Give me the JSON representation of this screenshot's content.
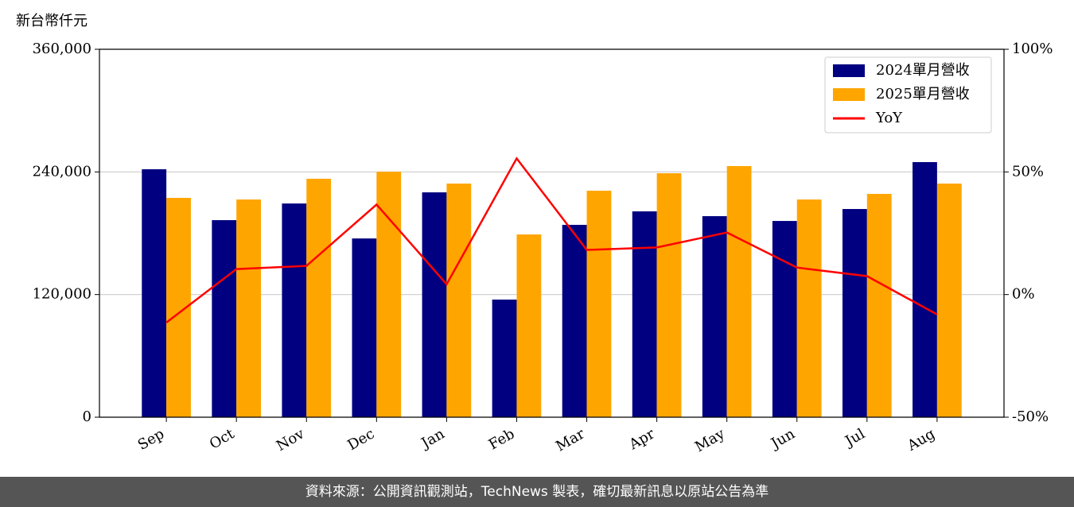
{
  "chart_data": {
    "type": "bar",
    "y_axis_label": "新台幣仟元",
    "categories": [
      "Sep",
      "Oct",
      "Nov",
      "Dec",
      "Jan",
      "Feb",
      "Mar",
      "Apr",
      "May",
      "Jun",
      "Jul",
      "Aug"
    ],
    "series": [
      {
        "name": "2024單月營收",
        "color": "#000080",
        "values": [
          242600,
          192800,
          209100,
          174900,
          220000,
          115100,
          188200,
          201400,
          196700,
          192000,
          203700,
          249600
        ]
      },
      {
        "name": "2025單月營收",
        "color": "#ffa500",
        "values": [
          214600,
          213000,
          233300,
          240200,
          228600,
          178800,
          221600,
          238700,
          245700,
          213000,
          218500,
          228600
        ]
      },
      {
        "name": "YoY",
        "type": "line",
        "axis": "y2",
        "color": "#ff0000",
        "values": [
          -11.4,
          10.4,
          11.7,
          36.7,
          4.2,
          55.5,
          18.2,
          19.2,
          25.3,
          11.0,
          7.5,
          -8.1
        ]
      }
    ],
    "ylim": [
      0,
      360000
    ],
    "yticks": [
      0,
      {
        "value": 120000,
        "label": "120,000"
      },
      {
        "value": 240000,
        "label": "240,000"
      },
      {
        "value": 360000,
        "label": "360,000"
      }
    ],
    "y2lim": [
      -50,
      100
    ],
    "y2ticks": [
      {
        "value": -50,
        "label": "-50%"
      },
      {
        "value": 0,
        "label": "0%"
      },
      {
        "value": 50,
        "label": "50%"
      },
      {
        "value": 100,
        "label": "100%"
      }
    ],
    "grid": true,
    "legend": "upper right"
  },
  "footer": "資料來源：公開資訊觀測站，TechNews 製表，確切最新訊息以原站公告為準"
}
